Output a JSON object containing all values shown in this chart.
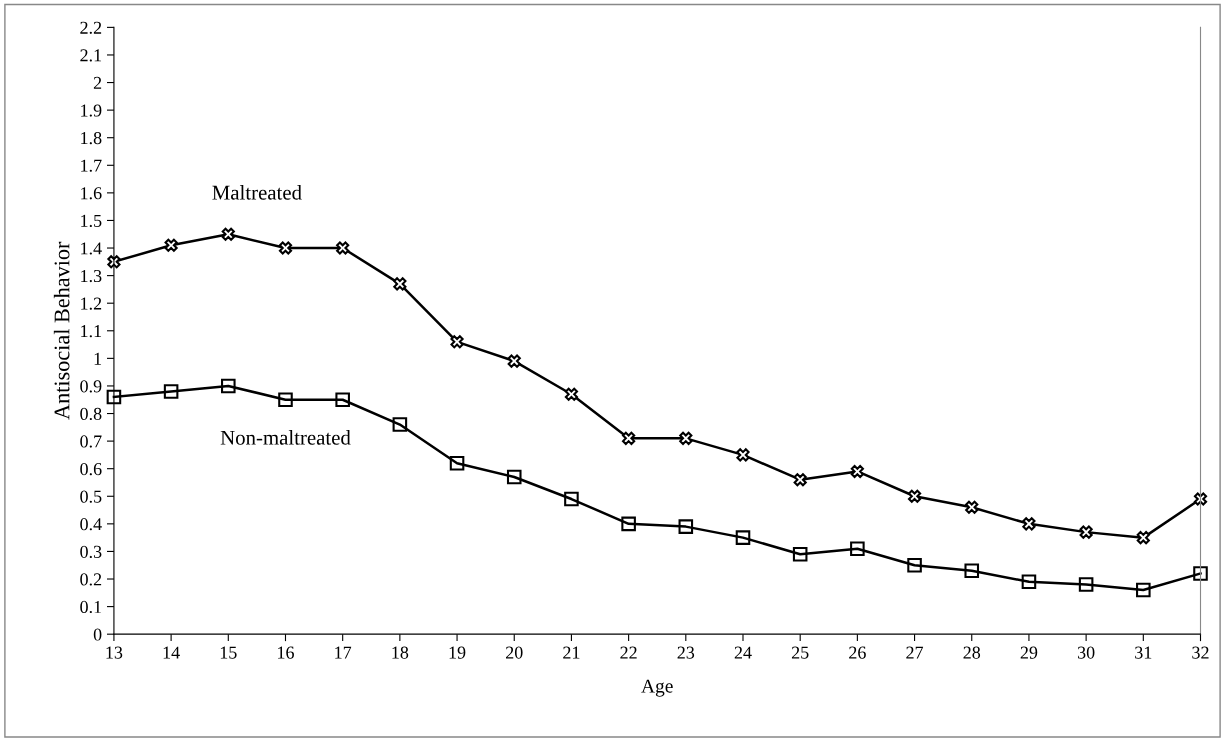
{
  "chart_data": {
    "type": "line",
    "xlabel": "Age",
    "ylabel": "Antisocial Behavior",
    "x": [
      13,
      14,
      15,
      16,
      17,
      18,
      19,
      20,
      21,
      22,
      23,
      24,
      25,
      26,
      27,
      28,
      29,
      30,
      31,
      32
    ],
    "series": [
      {
        "name": "Maltreated",
        "color": "#000000",
        "marker": "cross",
        "values": [
          1.35,
          1.41,
          1.45,
          1.4,
          1.4,
          1.27,
          1.06,
          0.99,
          0.87,
          0.71,
          0.71,
          0.65,
          0.56,
          0.59,
          0.5,
          0.46,
          0.4,
          0.37,
          0.35,
          0.49
        ]
      },
      {
        "name": "Non-maltreated",
        "color": "#000000",
        "marker": "square",
        "values": [
          0.86,
          0.88,
          0.9,
          0.85,
          0.85,
          0.76,
          0.62,
          0.57,
          0.49,
          0.4,
          0.39,
          0.35,
          0.29,
          0.31,
          0.25,
          0.23,
          0.19,
          0.18,
          0.16,
          0.22
        ]
      }
    ],
    "xlim": [
      13,
      32
    ],
    "xticks": [
      13,
      14,
      15,
      16,
      17,
      18,
      19,
      20,
      21,
      22,
      23,
      24,
      25,
      26,
      27,
      28,
      29,
      30,
      31,
      32
    ],
    "ylim": [
      0,
      2.2
    ],
    "yticks": [
      0,
      0.1,
      0.2,
      0.3,
      0.4,
      0.5,
      0.6,
      0.7,
      0.8,
      0.9,
      1,
      1.1,
      1.2,
      1.3,
      1.4,
      1.5,
      1.6,
      1.7,
      1.8,
      1.9,
      2,
      2.1,
      2.2
    ],
    "grid": false,
    "legend": false,
    "line_style": "solid"
  }
}
